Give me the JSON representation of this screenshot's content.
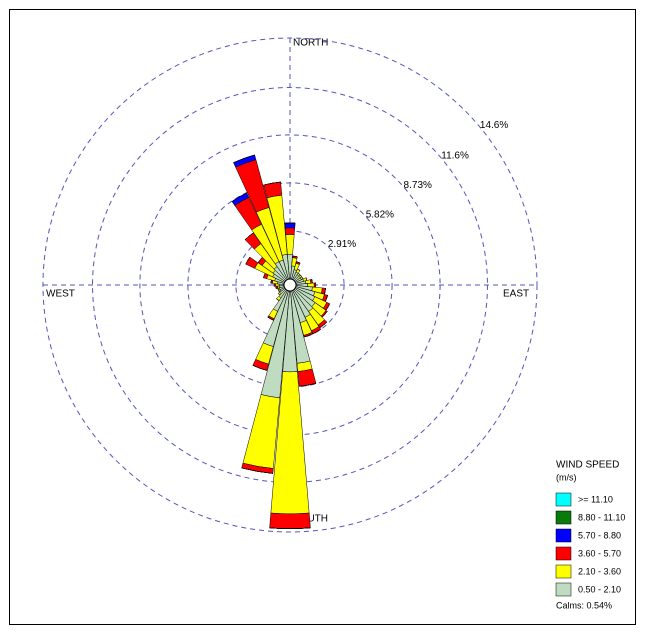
{
  "chart_data": {
    "type": "windrose",
    "directions": [
      0,
      10,
      20,
      30,
      40,
      50,
      60,
      70,
      80,
      90,
      100,
      110,
      120,
      130,
      140,
      150,
      160,
      170,
      180,
      190,
      200,
      210,
      220,
      230,
      240,
      250,
      260,
      270,
      280,
      290,
      300,
      310,
      320,
      330,
      340,
      350
    ],
    "compass": {
      "north": "NORTH",
      "east": "EAST",
      "south": "SOUTH",
      "west": "WEST"
    },
    "rlim": [
      0,
      14.6
    ],
    "rticks": [
      {
        "value": 2.91,
        "label": "2.91%"
      },
      {
        "value": 5.82,
        "label": "5.82%"
      },
      {
        "value": 8.73,
        "label": "8.73%"
      },
      {
        "value": 11.6,
        "label": "11.6%"
      },
      {
        "value": 14.6,
        "label": "14.6%"
      }
    ],
    "legend_title": "WIND SPEED",
    "legend_unit": "(m/s)",
    "calms_label": "Calms: 0.54%",
    "series": [
      {
        "name": "0.50 - 2.10",
        "color": "#c0dcc0",
        "values": [
          1.5,
          0.8,
          0.6,
          0.5,
          0.4,
          0.4,
          0.4,
          0.5,
          0.6,
          0.7,
          1.0,
          1.2,
          1.3,
          1.5,
          1.6,
          1.8,
          2.0,
          4.4,
          4.9,
          6.5,
          3.5,
          1.4,
          0.6,
          0.4,
          0.3,
          0.3,
          0.3,
          0.3,
          0.4,
          0.6,
          0.8,
          0.9,
          1.0,
          1.2,
          1.2,
          1.5
        ]
      },
      {
        "name": "2.10 - 3.60",
        "color": "#ffff00",
        "values": [
          1.2,
          0.5,
          0.4,
          0.2,
          0.1,
          0.1,
          0.1,
          0.2,
          0.3,
          0.4,
          0.6,
          0.6,
          0.8,
          0.8,
          1.0,
          0.9,
          0.8,
          0.5,
          8.6,
          4.3,
          1.1,
          0.5,
          0.2,
          0.1,
          0.1,
          0.1,
          0.1,
          0.2,
          0.3,
          0.5,
          1.2,
          0.8,
          1.7,
          2.5,
          3.3,
          3.6
        ]
      },
      {
        "name": "3.60 - 5.70",
        "color": "#ff0000",
        "values": [
          0.4,
          0.1,
          0.1,
          0,
          0,
          0,
          0,
          0,
          0.1,
          0.1,
          0.2,
          0.2,
          0.2,
          0.1,
          0.2,
          0.2,
          0.1,
          0.9,
          0.9,
          0.3,
          0.4,
          0.1,
          0,
          0,
          0,
          0,
          0.1,
          0.1,
          0.1,
          0.2,
          0.6,
          0.3,
          0.8,
          1.8,
          3.0,
          0.8
        ]
      },
      {
        "name": "5.70 - 8.80",
        "color": "#0000ff",
        "values": [
          0.3,
          0,
          0,
          0,
          0,
          0,
          0,
          0,
          0,
          0,
          0,
          0,
          0,
          0,
          0,
          0,
          0,
          0,
          0,
          0,
          0,
          0,
          0,
          0,
          0,
          0,
          0,
          0,
          0,
          0,
          0,
          0,
          0,
          0.3,
          0.3,
          0
        ]
      },
      {
        "name": "8.80 - 11.10",
        "color": "#0a7a0a",
        "values": [
          0,
          0,
          0,
          0,
          0,
          0,
          0,
          0,
          0,
          0,
          0,
          0,
          0,
          0,
          0,
          0,
          0,
          0,
          0,
          0,
          0,
          0,
          0,
          0,
          0,
          0,
          0,
          0,
          0,
          0,
          0,
          0,
          0,
          0,
          0,
          0
        ]
      },
      {
        "name": ">= 11.10",
        "color": "#00ffff",
        "values": [
          0,
          0,
          0,
          0,
          0,
          0,
          0,
          0,
          0,
          0,
          0,
          0,
          0,
          0,
          0,
          0,
          0,
          0,
          0,
          0,
          0,
          0,
          0,
          0,
          0,
          0,
          0,
          0,
          0,
          0,
          0,
          0,
          0,
          0,
          0,
          0
        ]
      }
    ]
  }
}
